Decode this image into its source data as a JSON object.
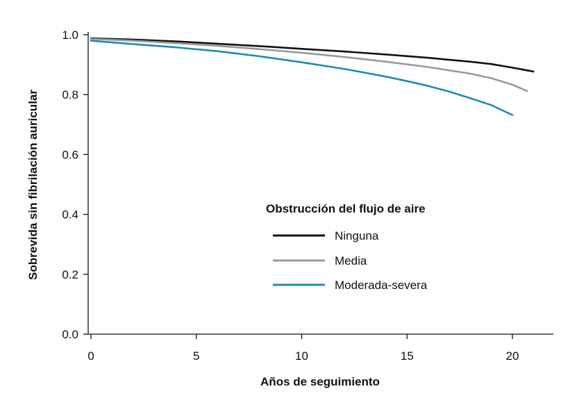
{
  "chart_data": {
    "type": "line",
    "title": "",
    "xlabel": "Años de seguimiento",
    "ylabel": "Sobrevida sin fibrilación auricular",
    "xlim": [
      0,
      22
    ],
    "ylim": [
      0,
      1.0
    ],
    "xticks": [
      0,
      5,
      10,
      15,
      20
    ],
    "xtick_labels": [
      "0",
      "5",
      "10",
      "15",
      "20"
    ],
    "yticks": [
      0,
      0.2,
      0.4,
      0.6,
      0.8,
      1.0
    ],
    "ytick_labels": [
      "0.0",
      "0.2",
      "0.4",
      "0.6",
      "0.8",
      "1.0"
    ],
    "grid": false,
    "legend": {
      "title": "Obstrucción del flujo de aire",
      "placement": "center-right"
    },
    "series": [
      {
        "name": "Ninguna",
        "color": "#111111",
        "x": [
          0,
          2,
          4,
          6,
          8,
          10,
          12,
          14,
          16,
          18,
          19,
          20,
          21
        ],
        "y": [
          0.988,
          0.984,
          0.978,
          0.97,
          0.962,
          0.953,
          0.944,
          0.934,
          0.923,
          0.91,
          0.902,
          0.89,
          0.877
        ]
      },
      {
        "name": "Media",
        "color": "#999999",
        "x": [
          0,
          2,
          4,
          6,
          8,
          10,
          12,
          14,
          16,
          18,
          19,
          20,
          20.7
        ],
        "y": [
          0.986,
          0.98,
          0.972,
          0.963,
          0.952,
          0.94,
          0.926,
          0.91,
          0.892,
          0.87,
          0.855,
          0.833,
          0.812
        ]
      },
      {
        "name": "Moderada-severa",
        "color": "#1a8cb5",
        "x": [
          0,
          2,
          4,
          6,
          8,
          10,
          12,
          14,
          15,
          16,
          17,
          18,
          19,
          20
        ],
        "y": [
          0.98,
          0.969,
          0.958,
          0.945,
          0.928,
          0.908,
          0.886,
          0.86,
          0.845,
          0.829,
          0.81,
          0.788,
          0.765,
          0.732
        ]
      }
    ]
  }
}
